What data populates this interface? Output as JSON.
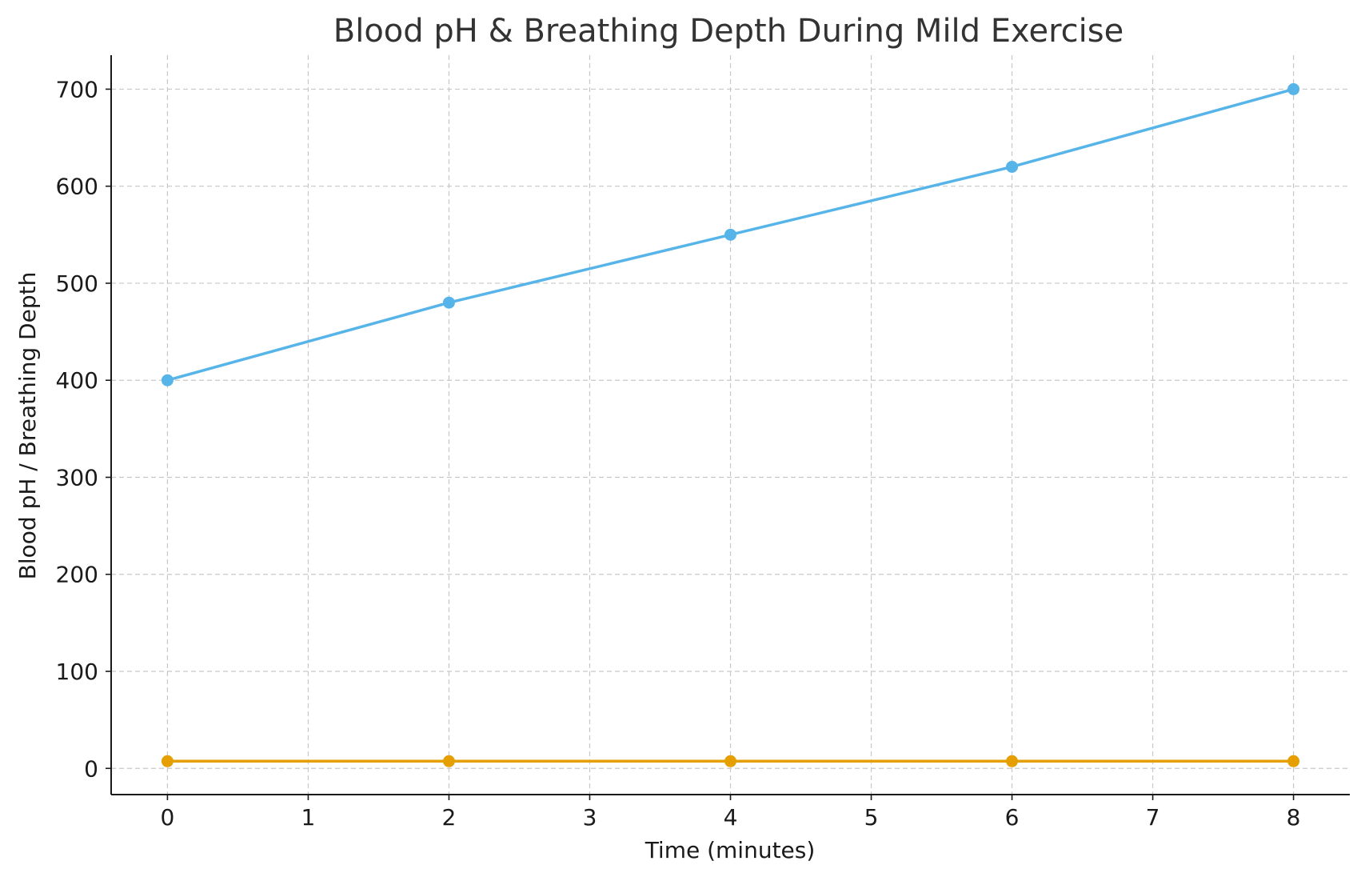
{
  "chart_data": {
    "type": "line",
    "title": "Blood pH & Breathing Depth During Mild Exercise",
    "xlabel": "Time (minutes)",
    "ylabel": "Blood pH / Breathing Depth",
    "xlim": [
      -0.4,
      8.4
    ],
    "ylim": [
      -27,
      735
    ],
    "xticks": [
      0,
      1,
      2,
      3,
      4,
      5,
      6,
      7,
      8
    ],
    "yticks": [
      0,
      100,
      200,
      300,
      400,
      500,
      600,
      700
    ],
    "grid": true,
    "legend": "none",
    "series": [
      {
        "color": "#56b4e9",
        "x": [
          0,
          2,
          4,
          6,
          8
        ],
        "y": [
          400,
          480,
          550,
          620,
          700
        ]
      },
      {
        "color": "#e69f00",
        "x": [
          0,
          2,
          4,
          6,
          8
        ],
        "y": [
          7.4,
          7.4,
          7.4,
          7.4,
          7.4
        ]
      }
    ]
  }
}
